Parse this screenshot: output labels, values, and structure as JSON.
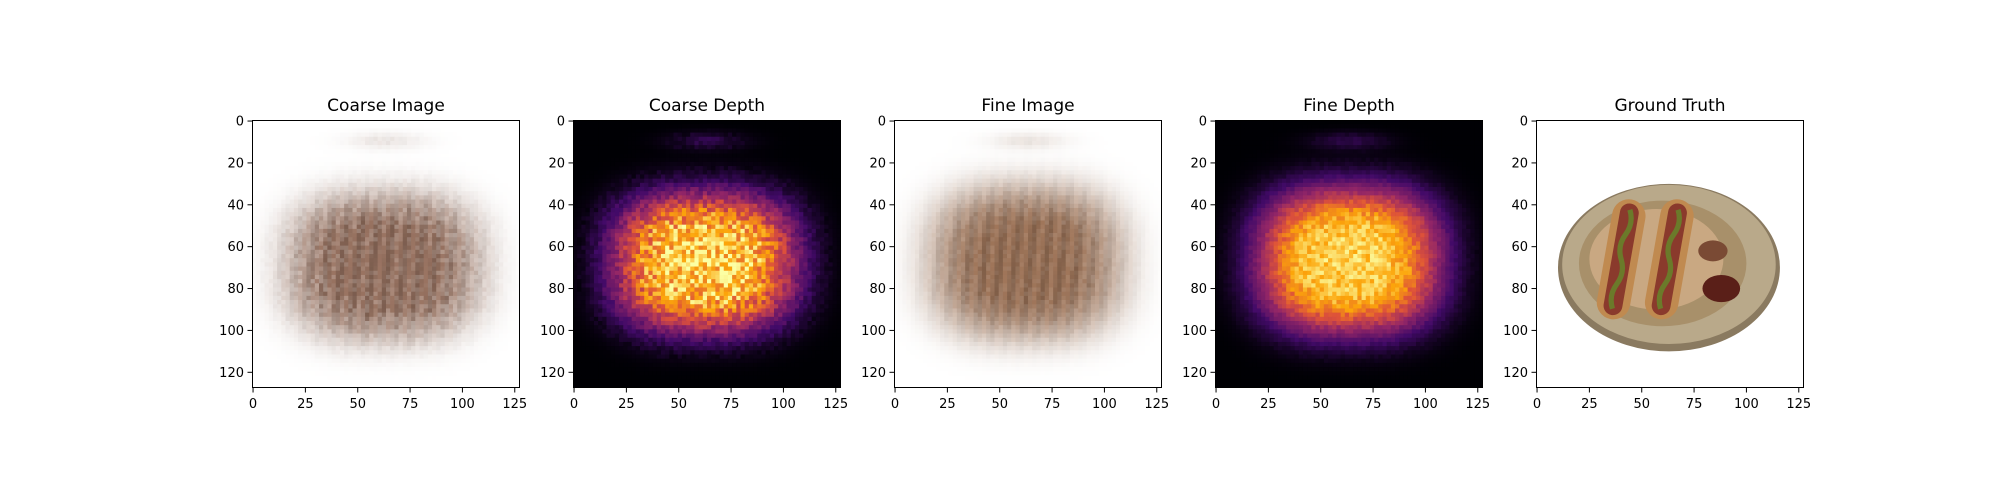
{
  "chart_data": [
    {
      "type": "heatmap",
      "title": "Coarse Image",
      "render": "rgb",
      "blurred": true,
      "noise": 0.35,
      "xlim": [
        0,
        127
      ],
      "ylim": [
        127,
        0
      ],
      "xticks": [
        0,
        25,
        50,
        75,
        100,
        125
      ],
      "yticks": [
        0,
        20,
        40,
        60,
        80,
        100,
        120
      ],
      "xtick_labels": [
        "0",
        "25",
        "50",
        "75",
        "100",
        "125"
      ],
      "ytick_labels": [
        "0",
        "20",
        "40",
        "60",
        "80",
        "100",
        "120"
      ],
      "blob": {
        "center_x": 63,
        "center_y": 70,
        "half_width": 50,
        "half_height": 38
      },
      "colors": {
        "background": "#ffffff",
        "object": "#9a7462"
      }
    },
    {
      "type": "heatmap",
      "title": "Coarse Depth",
      "render": "inferno",
      "noise": 0.25,
      "xlim": [
        0,
        127
      ],
      "ylim": [
        127,
        0
      ],
      "xticks": [
        0,
        25,
        50,
        75,
        100,
        125
      ],
      "yticks": [
        0,
        20,
        40,
        60,
        80,
        100,
        120
      ],
      "xtick_labels": [
        "0",
        "25",
        "50",
        "75",
        "100",
        "125"
      ],
      "ytick_labels": [
        "0",
        "20",
        "40",
        "60",
        "80",
        "100",
        "120"
      ],
      "blob": {
        "center_x": 63,
        "center_y": 68,
        "half_width": 50,
        "half_height": 38
      },
      "colors": {
        "background": "#000004",
        "peak": "#fcffa4"
      }
    },
    {
      "type": "heatmap",
      "title": "Fine Image",
      "render": "rgb",
      "blurred": true,
      "noise": 0.15,
      "xlim": [
        0,
        127
      ],
      "ylim": [
        127,
        0
      ],
      "xticks": [
        0,
        25,
        50,
        75,
        100,
        125
      ],
      "yticks": [
        0,
        20,
        40,
        60,
        80,
        100,
        120
      ],
      "xtick_labels": [
        "0",
        "25",
        "50",
        "75",
        "100",
        "125"
      ],
      "ytick_labels": [
        "0",
        "20",
        "40",
        "60",
        "80",
        "100",
        "120"
      ],
      "blob": {
        "center_x": 63,
        "center_y": 68,
        "half_width": 50,
        "half_height": 40
      },
      "colors": {
        "background": "#ffffff",
        "object": "#a0765a"
      }
    },
    {
      "type": "heatmap",
      "title": "Fine Depth",
      "render": "inferno",
      "noise": 0.12,
      "xlim": [
        0,
        127
      ],
      "ylim": [
        127,
        0
      ],
      "xticks": [
        0,
        25,
        50,
        75,
        100,
        125
      ],
      "yticks": [
        0,
        20,
        40,
        60,
        80,
        100,
        120
      ],
      "xtick_labels": [
        "0",
        "25",
        "50",
        "75",
        "100",
        "125"
      ],
      "ytick_labels": [
        "0",
        "20",
        "40",
        "60",
        "80",
        "100",
        "120"
      ],
      "blob": {
        "center_x": 64,
        "center_y": 67,
        "half_width": 50,
        "half_height": 40
      },
      "colors": {
        "background": "#000004",
        "peak": "#fcffa4"
      }
    },
    {
      "type": "heatmap",
      "title": "Ground Truth",
      "render": "photo",
      "xlim": [
        0,
        127
      ],
      "ylim": [
        127,
        0
      ],
      "xticks": [
        0,
        25,
        50,
        75,
        100,
        125
      ],
      "yticks": [
        0,
        20,
        40,
        60,
        80,
        100,
        120
      ],
      "xtick_labels": [
        "0",
        "25",
        "50",
        "75",
        "100",
        "125"
      ],
      "ytick_labels": [
        "0",
        "20",
        "40",
        "60",
        "80",
        "100",
        "120"
      ],
      "scene": "plate-with-two-hot-dogs-and-sauces",
      "colors": {
        "background": "#ffffff",
        "plate": "#b9a98a",
        "bun": "#c08a50",
        "sausage": "#8a3a2c",
        "sauce": "#5a1f18"
      }
    }
  ]
}
